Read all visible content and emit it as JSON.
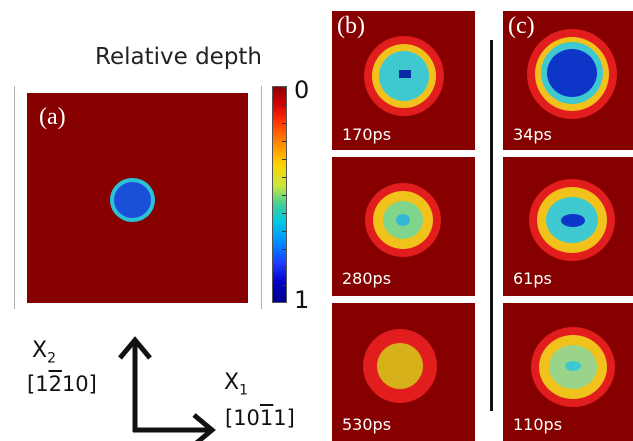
{
  "colorbar": {
    "title": "Relative depth",
    "min_label": "0",
    "max_label": "1",
    "colors": [
      "#8b0000",
      "#d60000",
      "#ff3300",
      "#ff8800",
      "#ffd200",
      "#c8e63c",
      "#3ccf9a",
      "#00c8e6",
      "#0090ff",
      "#1a3cff",
      "#0000c8",
      "#00008b"
    ]
  },
  "panel_a": {
    "letter": "(a)",
    "background_color": "#870000",
    "pit": {
      "outer_color": "#2ac2d6",
      "inner_color": "#1a4fd8"
    }
  },
  "panel_b": {
    "letter": "(b)",
    "tiles": [
      {
        "time": "170ps",
        "rings": [
          "#e11d1d",
          "#f1c21b",
          "#3ec8cf",
          "#0a2aa8"
        ]
      },
      {
        "time": "280ps",
        "rings": [
          "#e11d1d",
          "#f1c21b",
          "#7fd58a",
          "#35b8d8"
        ]
      },
      {
        "time": "530ps",
        "rings": [
          "#e11d1d",
          "#d7b11a"
        ]
      }
    ]
  },
  "panel_c": {
    "letter": "(c)",
    "tiles": [
      {
        "time": "34ps",
        "rings": [
          "#e11d1d",
          "#f1c21b",
          "#3ec8cf",
          "#0d36c8"
        ]
      },
      {
        "time": "61ps",
        "rings": [
          "#e11d1d",
          "#f1c21b",
          "#3ec8cf",
          "#0d36c8"
        ]
      },
      {
        "time": "110ps",
        "rings": [
          "#e11d1d",
          "#f1c21b",
          "#9ad48a",
          "#3ec8cf"
        ]
      }
    ]
  },
  "axes": {
    "x2": {
      "symbol": "X",
      "subscript": "2",
      "direction_parts": [
        "[1",
        "2",
        "10]"
      ]
    },
    "x1": {
      "symbol": "X",
      "subscript": "1",
      "direction_parts": [
        "[10",
        "1",
        "1]"
      ]
    }
  }
}
